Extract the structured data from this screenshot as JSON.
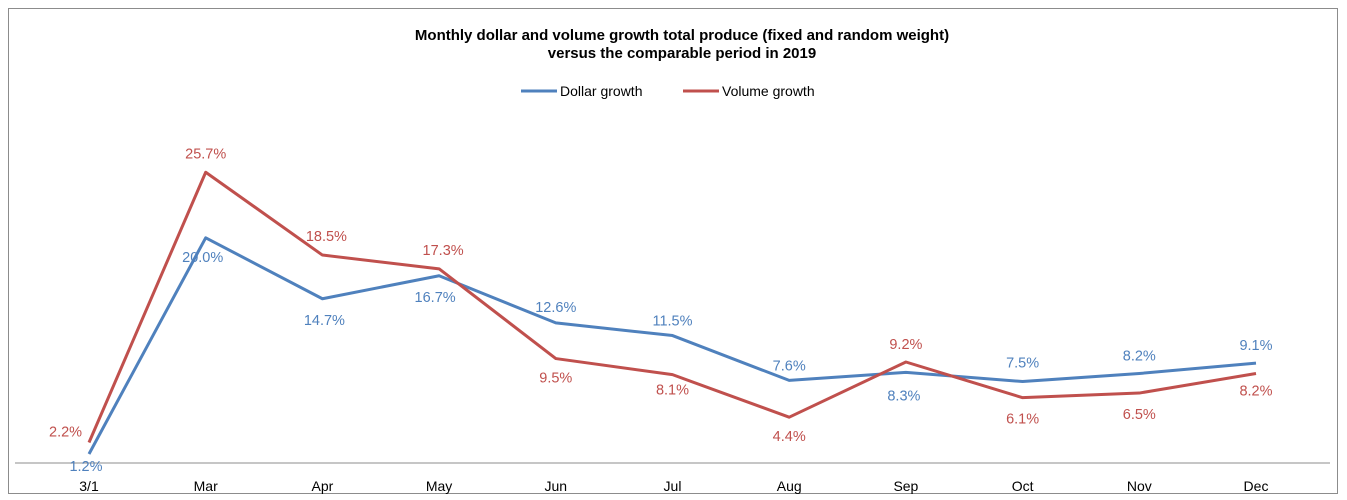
{
  "chart_data": {
    "type": "line",
    "title_line1": "Monthly dollar and volume growth  total produce (fixed and random weight)",
    "title_line2": "versus the comparable period in 2019",
    "categories": [
      "3/1",
      "Mar",
      "Apr",
      "May",
      "Jun",
      "Jul",
      "Aug",
      "Sep",
      "Oct",
      "Nov",
      "Dec"
    ],
    "series": [
      {
        "name": "Dollar growth",
        "color": "#4f81bd",
        "values": [
          1.2,
          20.0,
          14.7,
          16.7,
          12.6,
          11.5,
          7.6,
          8.3,
          7.5,
          8.2,
          9.1
        ],
        "labels": [
          "1.2%",
          "20.0%",
          "14.7%",
          "16.7%",
          "12.6%",
          "11.5%",
          "7.6%",
          "8.3%",
          "7.5%",
          "8.2%",
          "9.1%"
        ]
      },
      {
        "name": "Volume growth",
        "color": "#c0504d",
        "values": [
          2.2,
          25.7,
          18.5,
          17.3,
          9.5,
          8.1,
          4.4,
          9.2,
          6.1,
          6.5,
          8.2
        ],
        "labels": [
          "2.2%",
          "25.7%",
          "18.5%",
          "17.3%",
          "9.5%",
          "8.1%",
          "4.4%",
          "9.2%",
          "6.1%",
          "6.5%",
          "8.2%"
        ]
      }
    ],
    "ylim": [
      0,
      30
    ],
    "grid": false,
    "legend_position": "top-center"
  }
}
